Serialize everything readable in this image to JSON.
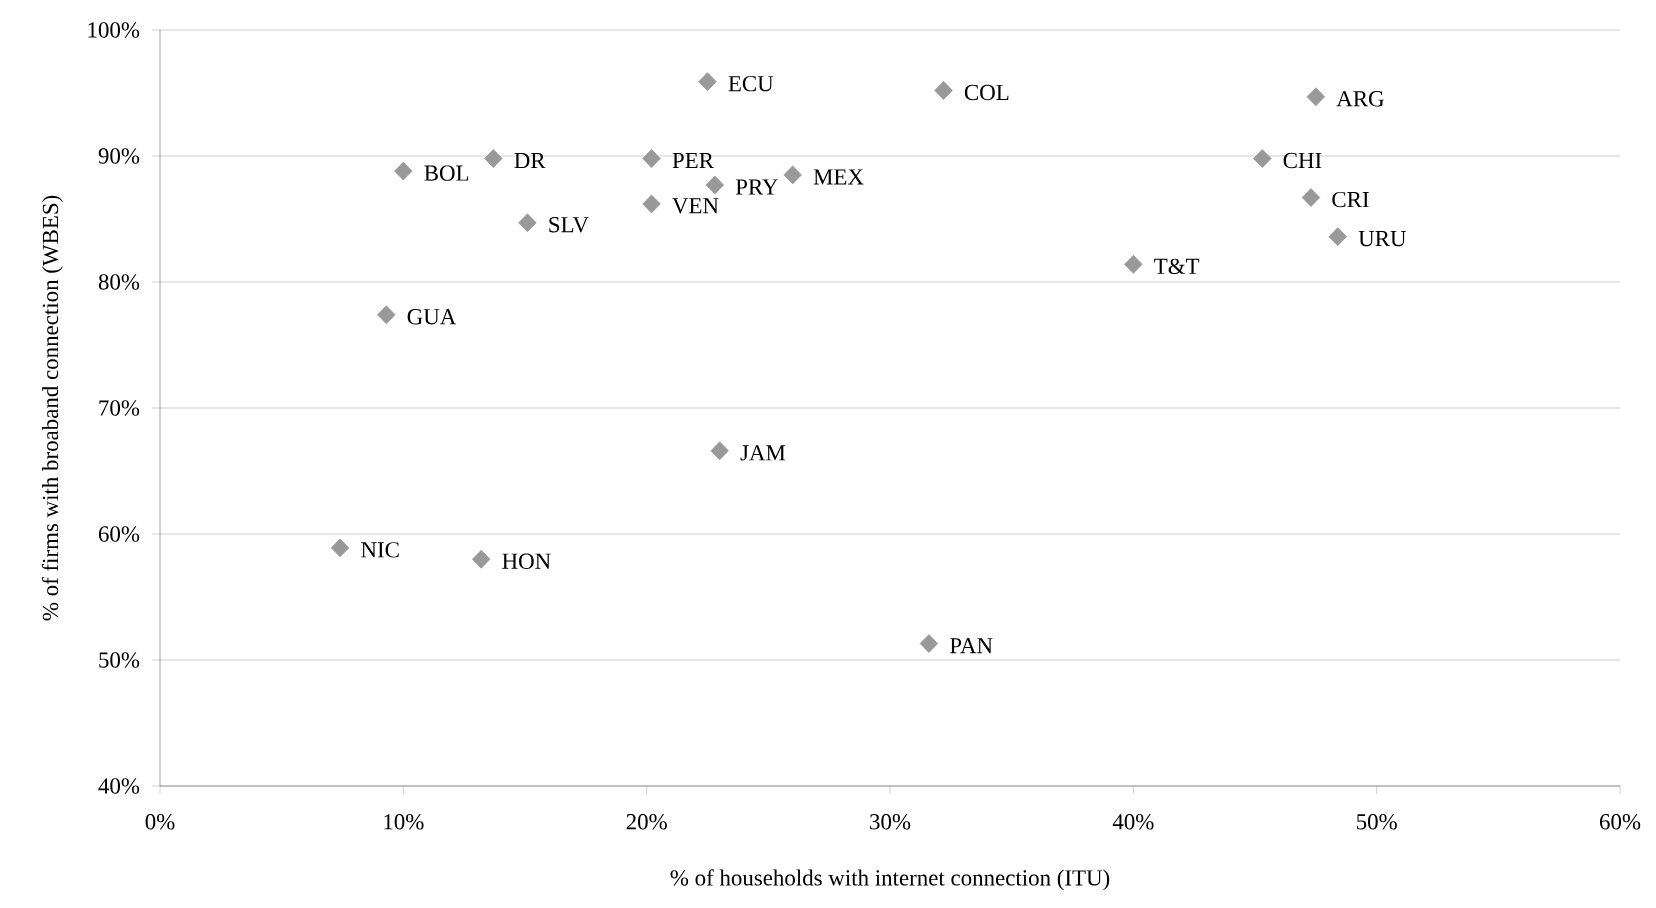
{
  "chart_data": {
    "type": "scatter",
    "xlabel": "% of households with internet connection (ITU)",
    "ylabel": "% of firms with broaband connection (WBES)",
    "series": [
      {
        "color": "#999999",
        "x": [
          22.5,
          13.7,
          20.2,
          10.0,
          22.8,
          26.0,
          20.2,
          15.1,
          9.3,
          23.0,
          7.4,
          13.2,
          32.2,
          47.5,
          45.3,
          47.3,
          48.4,
          40.0,
          31.6
        ],
        "values": [
          95.9,
          89.8,
          89.8,
          88.8,
          87.7,
          88.5,
          86.2,
          84.7,
          77.4,
          66.6,
          58.9,
          58.0,
          95.2,
          94.7,
          89.8,
          86.7,
          83.6,
          81.4,
          51.3
        ]
      }
    ],
    "annotations": [
      {
        "text": "ECU",
        "x": 22.5,
        "y": 95.9
      },
      {
        "text": "DR",
        "x": 13.7,
        "y": 89.8
      },
      {
        "text": "PER",
        "x": 20.2,
        "y": 89.8
      },
      {
        "text": "BOL",
        "x": 10.0,
        "y": 88.8
      },
      {
        "text": "PRY",
        "x": 22.8,
        "y": 87.7
      },
      {
        "text": "MEX",
        "x": 26.0,
        "y": 88.5
      },
      {
        "text": "VEN",
        "x": 20.2,
        "y": 86.2
      },
      {
        "text": "SLV",
        "x": 15.1,
        "y": 84.7
      },
      {
        "text": "GUA",
        "x": 9.3,
        "y": 77.4
      },
      {
        "text": "JAM",
        "x": 23.0,
        "y": 66.6
      },
      {
        "text": "NIC",
        "x": 7.4,
        "y": 58.9
      },
      {
        "text": "HON",
        "x": 13.2,
        "y": 58.0
      },
      {
        "text": "COL",
        "x": 32.2,
        "y": 95.2
      },
      {
        "text": "ARG",
        "x": 47.5,
        "y": 94.7
      },
      {
        "text": "CHI",
        "x": 45.3,
        "y": 89.8
      },
      {
        "text": "CRI",
        "x": 47.3,
        "y": 86.7
      },
      {
        "text": "URU",
        "x": 48.4,
        "y": 83.6
      },
      {
        "text": "T&T",
        "x": 40.0,
        "y": 81.4
      },
      {
        "text": "PAN",
        "x": 31.6,
        "y": 51.3
      }
    ],
    "xlim": [
      0,
      60
    ],
    "ylim": [
      40,
      100
    ],
    "xticks": [
      {
        "value": 0,
        "label": "0%"
      },
      {
        "value": 10,
        "label": "10%"
      },
      {
        "value": 20,
        "label": "20%"
      },
      {
        "value": 30,
        "label": "30%"
      },
      {
        "value": 40,
        "label": "40%"
      },
      {
        "value": 50,
        "label": "50%"
      },
      {
        "value": 60,
        "label": "60%"
      }
    ],
    "yticks": [
      {
        "value": 40,
        "label": "40%"
      },
      {
        "value": 50,
        "label": "50%"
      },
      {
        "value": 60,
        "label": "60%"
      },
      {
        "value": 70,
        "label": "70%"
      },
      {
        "value": 80,
        "label": "80%"
      },
      {
        "value": 90,
        "label": "90%"
      },
      {
        "value": 100,
        "label": "100%"
      }
    ],
    "grid": "y",
    "marker": "diamond"
  }
}
